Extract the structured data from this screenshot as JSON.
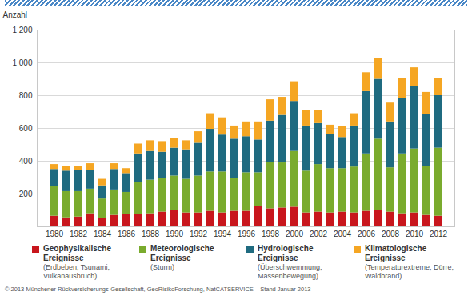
{
  "chart_data": {
    "type": "bar",
    "stacked": true,
    "grid": true,
    "y_label": "Anzahl",
    "caption": "© 2013 Münchener Rückversicherungs-Gesellschaft, GeoRisikoForschung, NatCATSERVICE – Stand Januar 2013",
    "categories": [
      "1980",
      null,
      "1982",
      null,
      "1984",
      null,
      "1986",
      null,
      "1988",
      null,
      "1990",
      null,
      "1992",
      null,
      "1994",
      null,
      "1996",
      null,
      "1998",
      null,
      "2000",
      null,
      "2002",
      null,
      "2004",
      null,
      "2006",
      null,
      "2008",
      null,
      "2010",
      null,
      "2012"
    ],
    "ylim": [
      0,
      1200
    ],
    "yticks": [
      200,
      400,
      600,
      800,
      {
        "value": 1000,
        "label": "1 000"
      },
      {
        "value": 1200,
        "label": "1 200"
      }
    ],
    "series": [
      {
        "name": "Geophysikalische Ereignisse",
        "description": "(Erdbeben, Tsunami, Vulkanausbruch)",
        "color": "#c8161d",
        "values": [
          65,
          55,
          60,
          80,
          50,
          70,
          75,
          75,
          80,
          90,
          100,
          85,
          85,
          95,
          85,
          95,
          95,
          125,
          110,
          115,
          120,
          85,
          90,
          85,
          90,
          85,
          95,
          100,
          90,
          80,
          85,
          70,
          65
        ]
      },
      {
        "name": "Meteorologische Ereignisse",
        "description": "(Sturm)",
        "color": "#7aab2e",
        "values": [
          180,
          160,
          155,
          150,
          120,
          155,
          135,
          195,
          205,
          205,
          210,
          205,
          225,
          240,
          250,
          200,
          235,
          205,
          285,
          275,
          340,
          255,
          290,
          270,
          265,
          280,
          350,
          435,
          270,
          365,
          390,
          300,
          415
        ]
      },
      {
        "name": "Hydrologische Ereignisse",
        "description": "(Überschwemmung, Massenbewegung)",
        "color": "#1f6b80",
        "values": [
          105,
          125,
          130,
          115,
          80,
          125,
          115,
          175,
          175,
          160,
          170,
          180,
          200,
          260,
          225,
          240,
          220,
          200,
          250,
          290,
          305,
          275,
          250,
          210,
          190,
          250,
          380,
          365,
          280,
          340,
          380,
          315,
          320
        ]
      },
      {
        "name": "Klimatologische Ereignisse",
        "description": "(Temperaturextreme, Dürre, Waldbrand)",
        "color": "#f5a623",
        "values": [
          30,
          30,
          25,
          40,
          40,
          35,
          30,
          60,
          65,
          65,
          60,
          55,
          70,
          95,
          105,
          80,
          90,
          110,
          130,
          110,
          120,
          95,
          80,
          55,
          65,
          75,
          115,
          125,
          115,
          120,
          115,
          135,
          105
        ]
      }
    ]
  }
}
